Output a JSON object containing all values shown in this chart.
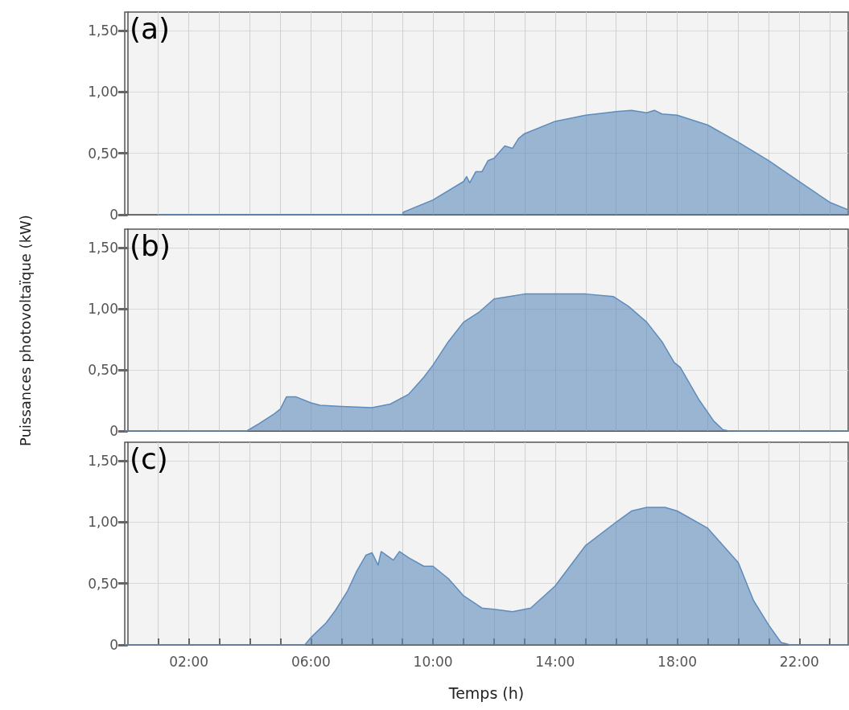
{
  "chart_data": [
    {
      "type": "area",
      "annotations": [
        "(a)"
      ],
      "color": "#5e8cbd",
      "marker": "none",
      "line_style": "solid",
      "grid": true,
      "tick_labels": "y",
      "xlim": [
        -0.1,
        23.6
      ],
      "ylim": [
        0,
        1.65
      ],
      "xticks": [
        {
          "value": 1,
          "label": null
        },
        {
          "value": 2,
          "label": null
        },
        {
          "value": 3,
          "label": null
        },
        {
          "value": 4,
          "label": null
        },
        {
          "value": 5,
          "label": null
        },
        {
          "value": 6,
          "label": null
        },
        {
          "value": 7,
          "label": null
        },
        {
          "value": 8,
          "label": null
        },
        {
          "value": 9,
          "label": null
        },
        {
          "value": 10,
          "label": null
        },
        {
          "value": 11,
          "label": null
        },
        {
          "value": 12,
          "label": null
        },
        {
          "value": 13,
          "label": null
        },
        {
          "value": 14,
          "label": null
        },
        {
          "value": 15,
          "label": null
        },
        {
          "value": 16,
          "label": null
        },
        {
          "value": 17,
          "label": null
        },
        {
          "value": 18,
          "label": null
        },
        {
          "value": 19,
          "label": null
        },
        {
          "value": 20,
          "label": null
        },
        {
          "value": 21,
          "label": null
        },
        {
          "value": 22,
          "label": null
        },
        {
          "value": 23,
          "label": null
        }
      ],
      "yticks": [
        {
          "value": 0,
          "label": "0"
        },
        {
          "value": 0.5,
          "label": "0,50"
        },
        {
          "value": 1,
          "label": "1,00"
        },
        {
          "value": 1.5,
          "label": "1,50"
        }
      ],
      "x": [
        1.0,
        9.0,
        9.02,
        10,
        11,
        11.1,
        11.2,
        11.4,
        11.6,
        11.8,
        12,
        12.35,
        12.6,
        12.8,
        13,
        14,
        15,
        16,
        16.5,
        17,
        17.25,
        17.5,
        18,
        19,
        20,
        21,
        22,
        23,
        23.6
      ],
      "values": [
        0,
        0,
        0.02,
        0.12,
        0.27,
        0.31,
        0.26,
        0.35,
        0.35,
        0.44,
        0.46,
        0.56,
        0.54,
        0.62,
        0.66,
        0.76,
        0.81,
        0.84,
        0.85,
        0.83,
        0.85,
        0.82,
        0.81,
        0.73,
        0.59,
        0.44,
        0.27,
        0.1,
        0.04
      ]
    },
    {
      "type": "area",
      "annotations": [
        "(b)"
      ],
      "ylabel": "Puissances photovoltaïque (kW)",
      "color": "#5e8cbd",
      "marker": "none",
      "line_style": "solid",
      "grid": true,
      "tick_labels": "y",
      "xlim": [
        -0.1,
        23.6
      ],
      "ylim": [
        0,
        1.65
      ],
      "xticks": [
        {
          "value": 1,
          "label": null
        },
        {
          "value": 2,
          "label": null
        },
        {
          "value": 3,
          "label": null
        },
        {
          "value": 4,
          "label": null
        },
        {
          "value": 5,
          "label": null
        },
        {
          "value": 6,
          "label": null
        },
        {
          "value": 7,
          "label": null
        },
        {
          "value": 8,
          "label": null
        },
        {
          "value": 9,
          "label": null
        },
        {
          "value": 10,
          "label": null
        },
        {
          "value": 11,
          "label": null
        },
        {
          "value": 12,
          "label": null
        },
        {
          "value": 13,
          "label": null
        },
        {
          "value": 14,
          "label": null
        },
        {
          "value": 15,
          "label": null
        },
        {
          "value": 16,
          "label": null
        },
        {
          "value": 17,
          "label": null
        },
        {
          "value": 18,
          "label": null
        },
        {
          "value": 19,
          "label": null
        },
        {
          "value": 20,
          "label": null
        },
        {
          "value": 21,
          "label": null
        },
        {
          "value": 22,
          "label": null
        },
        {
          "value": 23,
          "label": null
        }
      ],
      "yticks": [
        {
          "value": 0,
          "label": "0"
        },
        {
          "value": 0.5,
          "label": "0,50"
        },
        {
          "value": 1,
          "label": "1,00"
        },
        {
          "value": 1.5,
          "label": "1,50"
        }
      ],
      "x": [
        -0.1,
        3.9,
        4.3,
        4.8,
        5.0,
        5.2,
        5.5,
        6,
        6.3,
        7,
        8,
        8.6,
        9.2,
        9.7,
        10,
        10.5,
        11,
        11.5,
        12,
        12.5,
        13,
        14,
        15,
        15.9,
        16.4,
        17,
        17.5,
        17.9,
        18.1,
        18.7,
        19.2,
        19.5,
        19.7,
        23.6
      ],
      "values": [
        0,
        0,
        0.06,
        0.14,
        0.18,
        0.28,
        0.28,
        0.23,
        0.21,
        0.2,
        0.19,
        0.22,
        0.3,
        0.44,
        0.54,
        0.73,
        0.89,
        0.97,
        1.08,
        1.1,
        1.12,
        1.12,
        1.12,
        1.1,
        1.02,
        0.89,
        0.73,
        0.56,
        0.52,
        0.26,
        0.08,
        0.01,
        0,
        0
      ]
    },
    {
      "type": "area",
      "annotations": [
        "(c)"
      ],
      "xlabel": "Temps (h)",
      "color": "#5e8cbd",
      "marker": "none",
      "line_style": "solid",
      "grid": true,
      "xlim": [
        -0.1,
        23.6
      ],
      "ylim": [
        0,
        1.65
      ],
      "xticks": [
        {
          "value": 1,
          "label": null
        },
        {
          "value": 2,
          "label": "02:00"
        },
        {
          "value": 3,
          "label": null
        },
        {
          "value": 4,
          "label": null
        },
        {
          "value": 5,
          "label": null
        },
        {
          "value": 6,
          "label": "06:00"
        },
        {
          "value": 7,
          "label": null
        },
        {
          "value": 8,
          "label": null
        },
        {
          "value": 9,
          "label": null
        },
        {
          "value": 10,
          "label": "10:00"
        },
        {
          "value": 11,
          "label": null
        },
        {
          "value": 12,
          "label": null
        },
        {
          "value": 13,
          "label": null
        },
        {
          "value": 14,
          "label": "14:00"
        },
        {
          "value": 15,
          "label": null
        },
        {
          "value": 16,
          "label": null
        },
        {
          "value": 17,
          "label": null
        },
        {
          "value": 18,
          "label": "18:00"
        },
        {
          "value": 19,
          "label": null
        },
        {
          "value": 20,
          "label": null
        },
        {
          "value": 21,
          "label": null
        },
        {
          "value": 22,
          "label": "22:00"
        },
        {
          "value": 23,
          "label": null
        }
      ],
      "yticks": [
        {
          "value": 0,
          "label": "0"
        },
        {
          "value": 0.5,
          "label": "0,50"
        },
        {
          "value": 1,
          "label": "1,00"
        },
        {
          "value": 1.5,
          "label": "1,50"
        }
      ],
      "x": [
        -0.1,
        5.8,
        6,
        6.5,
        6.8,
        7.2,
        7.5,
        7.8,
        8,
        8.2,
        8.3,
        8.7,
        8.9,
        9.2,
        9.7,
        10,
        10.5,
        11,
        11.6,
        12,
        12.6,
        13.2,
        14,
        15,
        16,
        16.5,
        17,
        17.6,
        18,
        19,
        20,
        20.5,
        21,
        21.4,
        21.7,
        23.6
      ],
      "values": [
        0,
        0,
        0.06,
        0.18,
        0.28,
        0.44,
        0.6,
        0.73,
        0.75,
        0.65,
        0.76,
        0.69,
        0.76,
        0.71,
        0.64,
        0.64,
        0.54,
        0.4,
        0.3,
        0.29,
        0.27,
        0.3,
        0.48,
        0.81,
        1.0,
        1.09,
        1.12,
        1.12,
        1.09,
        0.95,
        0.67,
        0.36,
        0.16,
        0.02,
        0,
        0
      ]
    }
  ]
}
